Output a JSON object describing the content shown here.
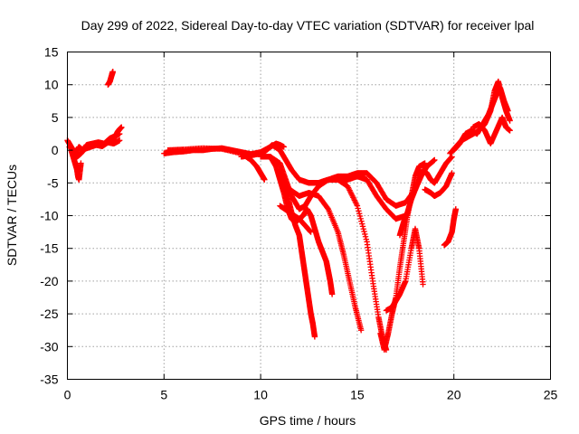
{
  "chart_data": {
    "type": "scatter",
    "title": "Day 299 of 2022, Sidereal Day-to-day VTEC variation (SDTVAR) for receiver lpal",
    "xlabel": "GPS time / hours",
    "ylabel": "SDTVAR / TECUs",
    "xlim": [
      0,
      25
    ],
    "ylim": [
      -35,
      15
    ],
    "xticks": [
      0,
      5,
      10,
      15,
      20,
      25
    ],
    "yticks": [
      15,
      10,
      5,
      0,
      -5,
      -10,
      -15,
      -20,
      -25,
      -30,
      -35
    ],
    "grid": true,
    "marker": "plus",
    "color": "#ff0000",
    "series": [
      {
        "x": [
          0.0,
          0.2,
          0.4,
          0.6,
          0.8,
          1.0,
          1.3,
          1.6,
          1.9,
          2.2,
          2.5,
          2.7
        ],
        "y": [
          1.5,
          0.5,
          -0.5,
          0.5,
          0.0,
          0.8,
          1.0,
          1.2,
          1.0,
          1.8,
          2.2,
          2.5
        ]
      },
      {
        "x": [
          0.1,
          0.3,
          0.5,
          0.7,
          0.9,
          1.2,
          1.5,
          1.8,
          2.1,
          2.4,
          2.7
        ],
        "y": [
          0.5,
          0.0,
          -1.0,
          -0.5,
          0.2,
          0.5,
          0.8,
          0.6,
          1.2,
          1.0,
          1.5
        ]
      },
      {
        "x": [
          0.2,
          0.3,
          0.4,
          0.5,
          0.55,
          0.6,
          0.7
        ],
        "y": [
          0.0,
          -1.0,
          -2.0,
          -3.0,
          -4.0,
          -4.5,
          -2.0
        ]
      },
      {
        "x": [
          2.1,
          2.2,
          2.3,
          2.35
        ],
        "y": [
          10.0,
          10.5,
          11.5,
          12.0
        ]
      },
      {
        "x": [
          2.3,
          2.4,
          2.5,
          2.6,
          2.7,
          2.8
        ],
        "y": [
          1.5,
          1.8,
          2.2,
          2.8,
          3.2,
          3.5
        ]
      },
      {
        "x": [
          5.0,
          5.5,
          6.0,
          6.5,
          7.0,
          7.5,
          8.0,
          8.5,
          9.0,
          9.5,
          10.0,
          10.5,
          10.8,
          11.0,
          11.2
        ],
        "y": [
          -0.5,
          -0.3,
          -0.2,
          0.0,
          0.0,
          0.2,
          0.3,
          0.0,
          -0.3,
          -0.6,
          -0.3,
          0.5,
          1.0,
          0.8,
          0.5
        ]
      },
      {
        "x": [
          5.2,
          6.0,
          7.0,
          8.0,
          9.0,
          9.5,
          9.8,
          10.0,
          10.2
        ],
        "y": [
          0.0,
          0.1,
          0.3,
          0.2,
          -0.5,
          -1.5,
          -2.5,
          -3.5,
          -4.5
        ]
      },
      {
        "x": [
          9.0,
          9.5,
          10.0,
          10.3,
          10.6,
          11.0,
          11.3,
          11.6,
          12.0,
          12.5,
          13.0,
          13.5,
          14.0,
          14.5,
          15.0,
          15.5,
          16.0,
          16.5,
          17.0,
          17.5,
          18.0,
          18.3,
          18.6,
          19.0
        ],
        "y": [
          -1.0,
          -0.8,
          -0.5,
          0.0,
          0.8,
          0.0,
          -1.5,
          -3.0,
          -4.5,
          -5.0,
          -5.0,
          -4.5,
          -4.0,
          -4.0,
          -3.5,
          -3.5,
          -5.0,
          -7.5,
          -8.5,
          -8.0,
          -6.0,
          -4.0,
          -2.5,
          -1.5
        ]
      },
      {
        "x": [
          10.0,
          10.5,
          11.0,
          11.3,
          11.6,
          12.0,
          12.3,
          12.6,
          13.0,
          13.5,
          14.0,
          14.5,
          15.0,
          15.5,
          16.0,
          16.5,
          17.0,
          17.5
        ],
        "y": [
          -1.0,
          -1.0,
          -2.0,
          -4.5,
          -7.0,
          -9.0,
          -8.5,
          -7.0,
          -5.5,
          -4.5,
          -4.5,
          -4.5,
          -4.0,
          -4.5,
          -7.0,
          -9.0,
          -10.5,
          -10.0
        ]
      },
      {
        "x": [
          10.5,
          10.8,
          11.0,
          11.2,
          11.4,
          11.6,
          11.8,
          12.0,
          12.2,
          12.4,
          12.6,
          12.8,
          13.0,
          13.2,
          13.4,
          13.5,
          13.6,
          13.7
        ],
        "y": [
          -1.0,
          -2.5,
          -4.5,
          -6.5,
          -9.0,
          -10.5,
          -11.0,
          -10.5,
          -10.0,
          -9.0,
          -10.0,
          -12.0,
          -14.0,
          -15.5,
          -17.0,
          -18.5,
          -20.0,
          -22.0
        ]
      },
      {
        "x": [
          11.0,
          11.2,
          11.4,
          11.6,
          11.8,
          12.0,
          12.1,
          12.2,
          12.3,
          12.4,
          12.5,
          12.6,
          12.7,
          12.8
        ],
        "y": [
          -3.0,
          -5.0,
          -7.0,
          -9.5,
          -11.5,
          -13.0,
          -15.0,
          -17.0,
          -19.0,
          -21.0,
          -23.0,
          -25.0,
          -26.5,
          -28.5
        ]
      },
      {
        "x": [
          11.0,
          11.5,
          12.0,
          12.3,
          12.6
        ],
        "y": [
          -8.5,
          -9.5,
          -10.5,
          -11.5,
          -12.5
        ]
      },
      {
        "x": [
          11.5,
          12.0,
          12.5,
          13.0,
          13.5,
          14.0,
          14.3,
          14.6,
          14.9,
          15.2
        ],
        "y": [
          -6.0,
          -7.0,
          -6.5,
          -7.0,
          -9.0,
          -12.5,
          -16.0,
          -20.0,
          -24.0,
          -27.5
        ]
      },
      {
        "x": [
          12.5,
          13.0,
          13.5,
          14.0,
          14.5,
          15.0,
          15.5,
          15.8,
          16.1,
          16.3,
          16.5
        ],
        "y": [
          -5.0,
          -5.0,
          -4.5,
          -4.5,
          -5.5,
          -8.5,
          -14.0,
          -20.0,
          -25.5,
          -28.5,
          -30.5
        ]
      },
      {
        "x": [
          16.2,
          16.4,
          16.6,
          16.8,
          17.0,
          17.2,
          17.4,
          17.6,
          17.8,
          18.0,
          18.2,
          18.5
        ],
        "y": [
          -28.0,
          -30.5,
          -28.0,
          -25.0,
          -22.5,
          -18.0,
          -14.0,
          -10.0,
          -7.0,
          -4.0,
          -2.5,
          -2.0
        ]
      },
      {
        "x": [
          16.5,
          16.8,
          17.0,
          17.2,
          17.5,
          17.8,
          18.0,
          18.2,
          18.4
        ],
        "y": [
          -24.5,
          -24.0,
          -23.0,
          -22.0,
          -20.0,
          -15.0,
          -12.0,
          -15.0,
          -20.5
        ]
      },
      {
        "x": [
          17.2,
          17.4,
          17.6,
          17.8,
          18.0,
          18.2,
          18.4,
          18.6,
          18.8,
          19.0,
          19.3,
          19.6,
          19.9
        ],
        "y": [
          -13.0,
          -11.0,
          -9.5,
          -7.5,
          -6.0,
          -4.5,
          -3.0,
          -3.5,
          -4.5,
          -5.0,
          -3.5,
          -2.0,
          -1.0
        ]
      },
      {
        "x": [
          18.5,
          18.8,
          19.0,
          19.3,
          19.6,
          19.9
        ],
        "y": [
          -6.0,
          -6.5,
          -7.0,
          -6.5,
          -5.5,
          -3.5
        ]
      },
      {
        "x": [
          19.5,
          19.7,
          19.9,
          20.0,
          20.1
        ],
        "y": [
          -14.5,
          -14.0,
          -12.5,
          -10.5,
          -9.0
        ]
      },
      {
        "x": [
          19.8,
          20.1,
          20.4,
          20.7,
          21.0,
          21.3,
          21.6,
          21.9,
          22.1,
          22.3,
          22.5,
          22.7,
          22.9
        ],
        "y": [
          -0.5,
          0.5,
          1.5,
          2.0,
          2.5,
          3.0,
          4.0,
          6.0,
          9.0,
          10.5,
          8.0,
          6.0,
          4.5
        ]
      },
      {
        "x": [
          20.0,
          20.3,
          20.6,
          20.9,
          21.2,
          21.5,
          21.8,
          22.0,
          22.2,
          22.4,
          22.6,
          22.8
        ],
        "y": [
          0.0,
          1.0,
          2.5,
          3.0,
          2.5,
          4.0,
          5.5,
          7.0,
          8.5,
          9.5,
          7.5,
          6.0
        ]
      },
      {
        "x": [
          21.0,
          21.3,
          21.6,
          21.9,
          22.2,
          22.5,
          22.7,
          22.9
        ],
        "y": [
          3.5,
          4.0,
          3.0,
          1.0,
          3.0,
          5.0,
          3.5,
          3.0
        ]
      }
    ]
  }
}
